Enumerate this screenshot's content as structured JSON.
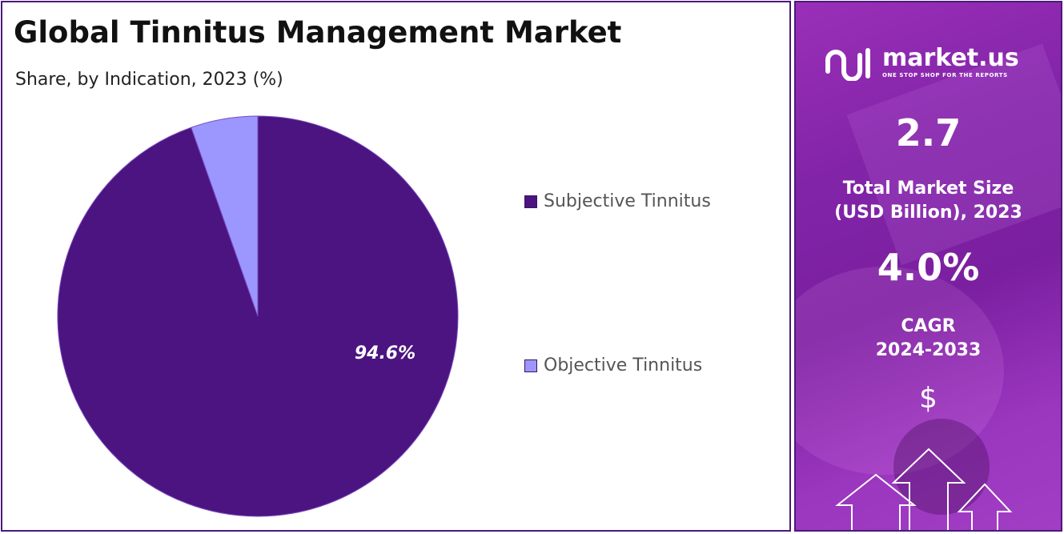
{
  "title": "Global Tinnitus Management Market",
  "subtitle": "Share, by Indication, 2023 (%)",
  "chart_data": {
    "type": "pie",
    "title": "Global Tinnitus Management Market",
    "subtitle": "Share, by Indication, 2023 (%)",
    "categories": [
      "Subjective Tinnitus",
      "Objective Tinnitus"
    ],
    "values": [
      94.6,
      5.4
    ],
    "data_labels": [
      "94.6%",
      ""
    ],
    "colors": [
      "#4b1480",
      "#9b97ff"
    ],
    "legend_position": "right"
  },
  "legend": [
    {
      "label": "Subjective Tinnitus",
      "color": "#4b1480"
    },
    {
      "label": "Objective Tinnitus",
      "color": "#9b97ff"
    }
  ],
  "sidebar": {
    "brand_name": "market.us",
    "brand_tagline": "ONE STOP SHOP FOR THE REPORTS",
    "market_size_value": "2.7",
    "market_size_label_line1": "Total Market Size",
    "market_size_label_line2": "(USD Billion), 2023",
    "cagr_value": "4.0%",
    "cagr_label_line1": "CAGR",
    "cagr_label_line2": "2024-2033",
    "currency_symbol": "$"
  }
}
